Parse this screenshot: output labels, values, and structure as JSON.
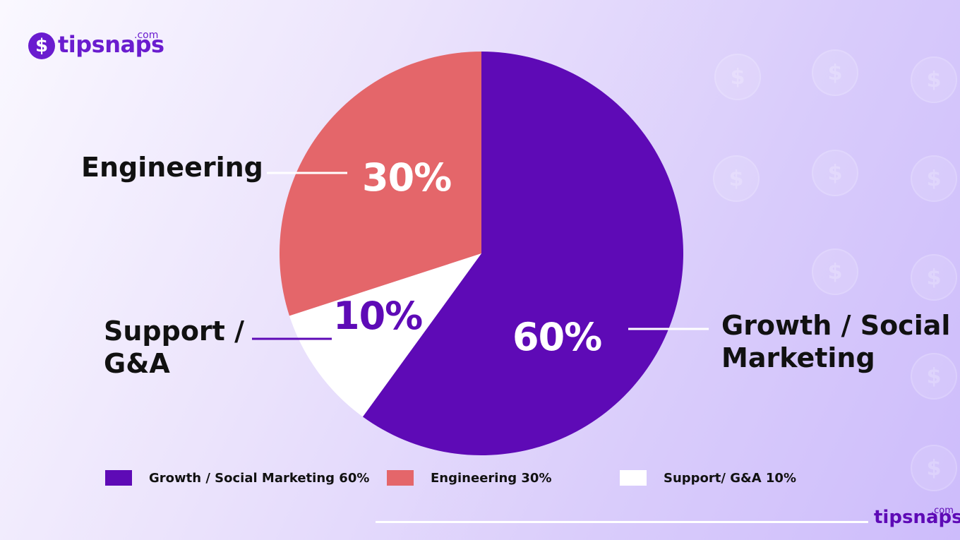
{
  "brand": {
    "logo_top": "tipsnaps",
    "logo_top_suffix": ".com",
    "logo_bottom": "tipsnaps",
    "logo_bottom_suffix": ".com",
    "coin_symbol": "$"
  },
  "colors": {
    "growth": "#5e0ab6",
    "engineering": "#e4666a",
    "support": "#ffffff",
    "text": "#111111"
  },
  "chart_data": {
    "type": "pie",
    "start": "12 o'clock, clockwise",
    "slices": [
      {
        "name": "Growth / Social Marketing",
        "value": 60,
        "label": "60%",
        "color": "#5e0ab6"
      },
      {
        "name": "Support / G&A",
        "value": 10,
        "label": "10%",
        "color": "#ffffff"
      },
      {
        "name": "Engineering",
        "value": 30,
        "label": "30%",
        "color": "#e4666a"
      }
    ],
    "callouts": {
      "engineering": "Engineering",
      "support_line1": "Support /",
      "support_line2": "G&A",
      "growth_line1": "Growth / Social",
      "growth_line2": "Marketing"
    },
    "legend": [
      {
        "label": "Growth / Social Marketing 60%",
        "color": "#5e0ab6"
      },
      {
        "label": "Engineering 30%",
        "color": "#e4666a"
      },
      {
        "label": "Support/ G&A 10%",
        "color": "#ffffff"
      }
    ],
    "legend_position": "bottom"
  }
}
